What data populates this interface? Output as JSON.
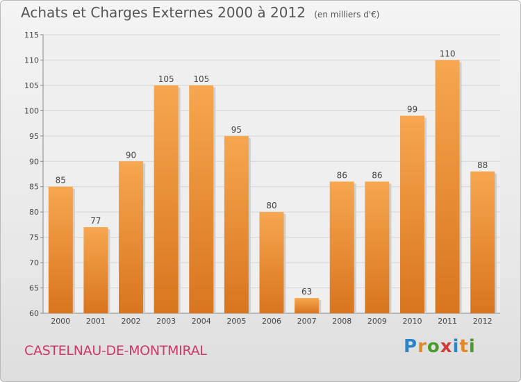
{
  "chart_data": {
    "type": "bar",
    "title": "Achats et Charges Externes 2000 à 2012",
    "subtitle": "(en milliers d'€)",
    "categories": [
      "2000",
      "2001",
      "2002",
      "2003",
      "2004",
      "2005",
      "2006",
      "2007",
      "2008",
      "2009",
      "2010",
      "2011",
      "2012"
    ],
    "values": [
      85,
      77,
      90,
      105,
      105,
      95,
      80,
      63,
      86,
      86,
      99,
      110,
      88
    ],
    "ylim": [
      60,
      115
    ],
    "yticks": [
      60,
      65,
      70,
      75,
      80,
      85,
      90,
      95,
      100,
      105,
      110,
      115
    ],
    "grid": true,
    "bar_color_top": "#f6a74f",
    "bar_color_bottom": "#d9751f"
  },
  "location": "CASTELNAU-DE-MONTMIRAL",
  "logo": {
    "letters": [
      "P",
      "r",
      "o",
      "x",
      "i",
      "t",
      "i"
    ]
  }
}
